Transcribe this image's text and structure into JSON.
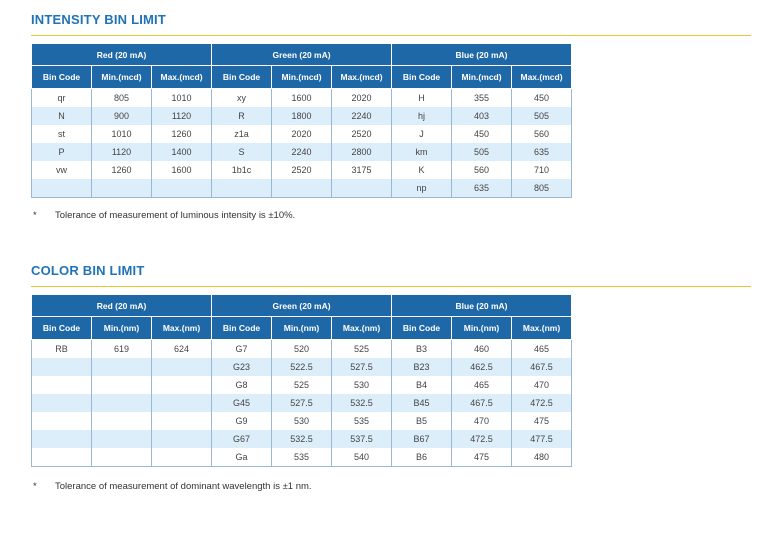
{
  "intensity": {
    "title": "INTENSITY BIN LIMIT",
    "groups": [
      "Red (20 mA)",
      "Green (20 mA)",
      "Blue (20 mA)"
    ],
    "subheaders": [
      "Bin Code",
      "Min.(mcd)",
      "Max.(mcd)",
      "Bin Code",
      "Min.(mcd)",
      "Max.(mcd)",
      "Bin Code",
      "Min.(mcd)",
      "Max.(mcd)"
    ],
    "rows": [
      [
        "qr",
        "805",
        "1010",
        "xy",
        "1600",
        "2020",
        "H",
        "355",
        "450"
      ],
      [
        "N",
        "900",
        "1120",
        "R",
        "1800",
        "2240",
        "hj",
        "403",
        "505"
      ],
      [
        "st",
        "1010",
        "1260",
        "z1a",
        "2020",
        "2520",
        "J",
        "450",
        "560"
      ],
      [
        "P",
        "1120",
        "1400",
        "S",
        "2240",
        "2800",
        "km",
        "505",
        "635"
      ],
      [
        "vw",
        "1260",
        "1600",
        "1b1c",
        "2520",
        "3175",
        "K",
        "560",
        "710"
      ],
      [
        "",
        "",
        "",
        "",
        "",
        "",
        "np",
        "635",
        "805"
      ]
    ],
    "note_mark": "*",
    "note": "Tolerance of measurement of luminous intensity is ±10%."
  },
  "color": {
    "title": "COLOR BIN LIMIT",
    "groups": [
      "Red (20 mA)",
      "Green (20 mA)",
      "Blue (20 mA)"
    ],
    "subheaders": [
      "Bin Code",
      "Min.(nm)",
      "Max.(nm)",
      "Bin Code",
      "Min.(nm)",
      "Max.(nm)",
      "Bin Code",
      "Min.(nm)",
      "Max.(nm)"
    ],
    "rows": [
      [
        "RB",
        "619",
        "624",
        "G7",
        "520",
        "525",
        "B3",
        "460",
        "465"
      ],
      [
        "",
        "",
        "",
        "G23",
        "522.5",
        "527.5",
        "B23",
        "462.5",
        "467.5"
      ],
      [
        "",
        "",
        "",
        "G8",
        "525",
        "530",
        "B4",
        "465",
        "470"
      ],
      [
        "",
        "",
        "",
        "G45",
        "527.5",
        "532.5",
        "B45",
        "467.5",
        "472.5"
      ],
      [
        "",
        "",
        "",
        "G9",
        "530",
        "535",
        "B5",
        "470",
        "475"
      ],
      [
        "",
        "",
        "",
        "G67",
        "532.5",
        "537.5",
        "B67",
        "472.5",
        "477.5"
      ],
      [
        "",
        "",
        "",
        "Ga",
        "535",
        "540",
        "B6",
        "475",
        "480"
      ]
    ],
    "note_mark": "*",
    "note": "Tolerance of measurement of dominant wavelength is ±1 nm."
  }
}
